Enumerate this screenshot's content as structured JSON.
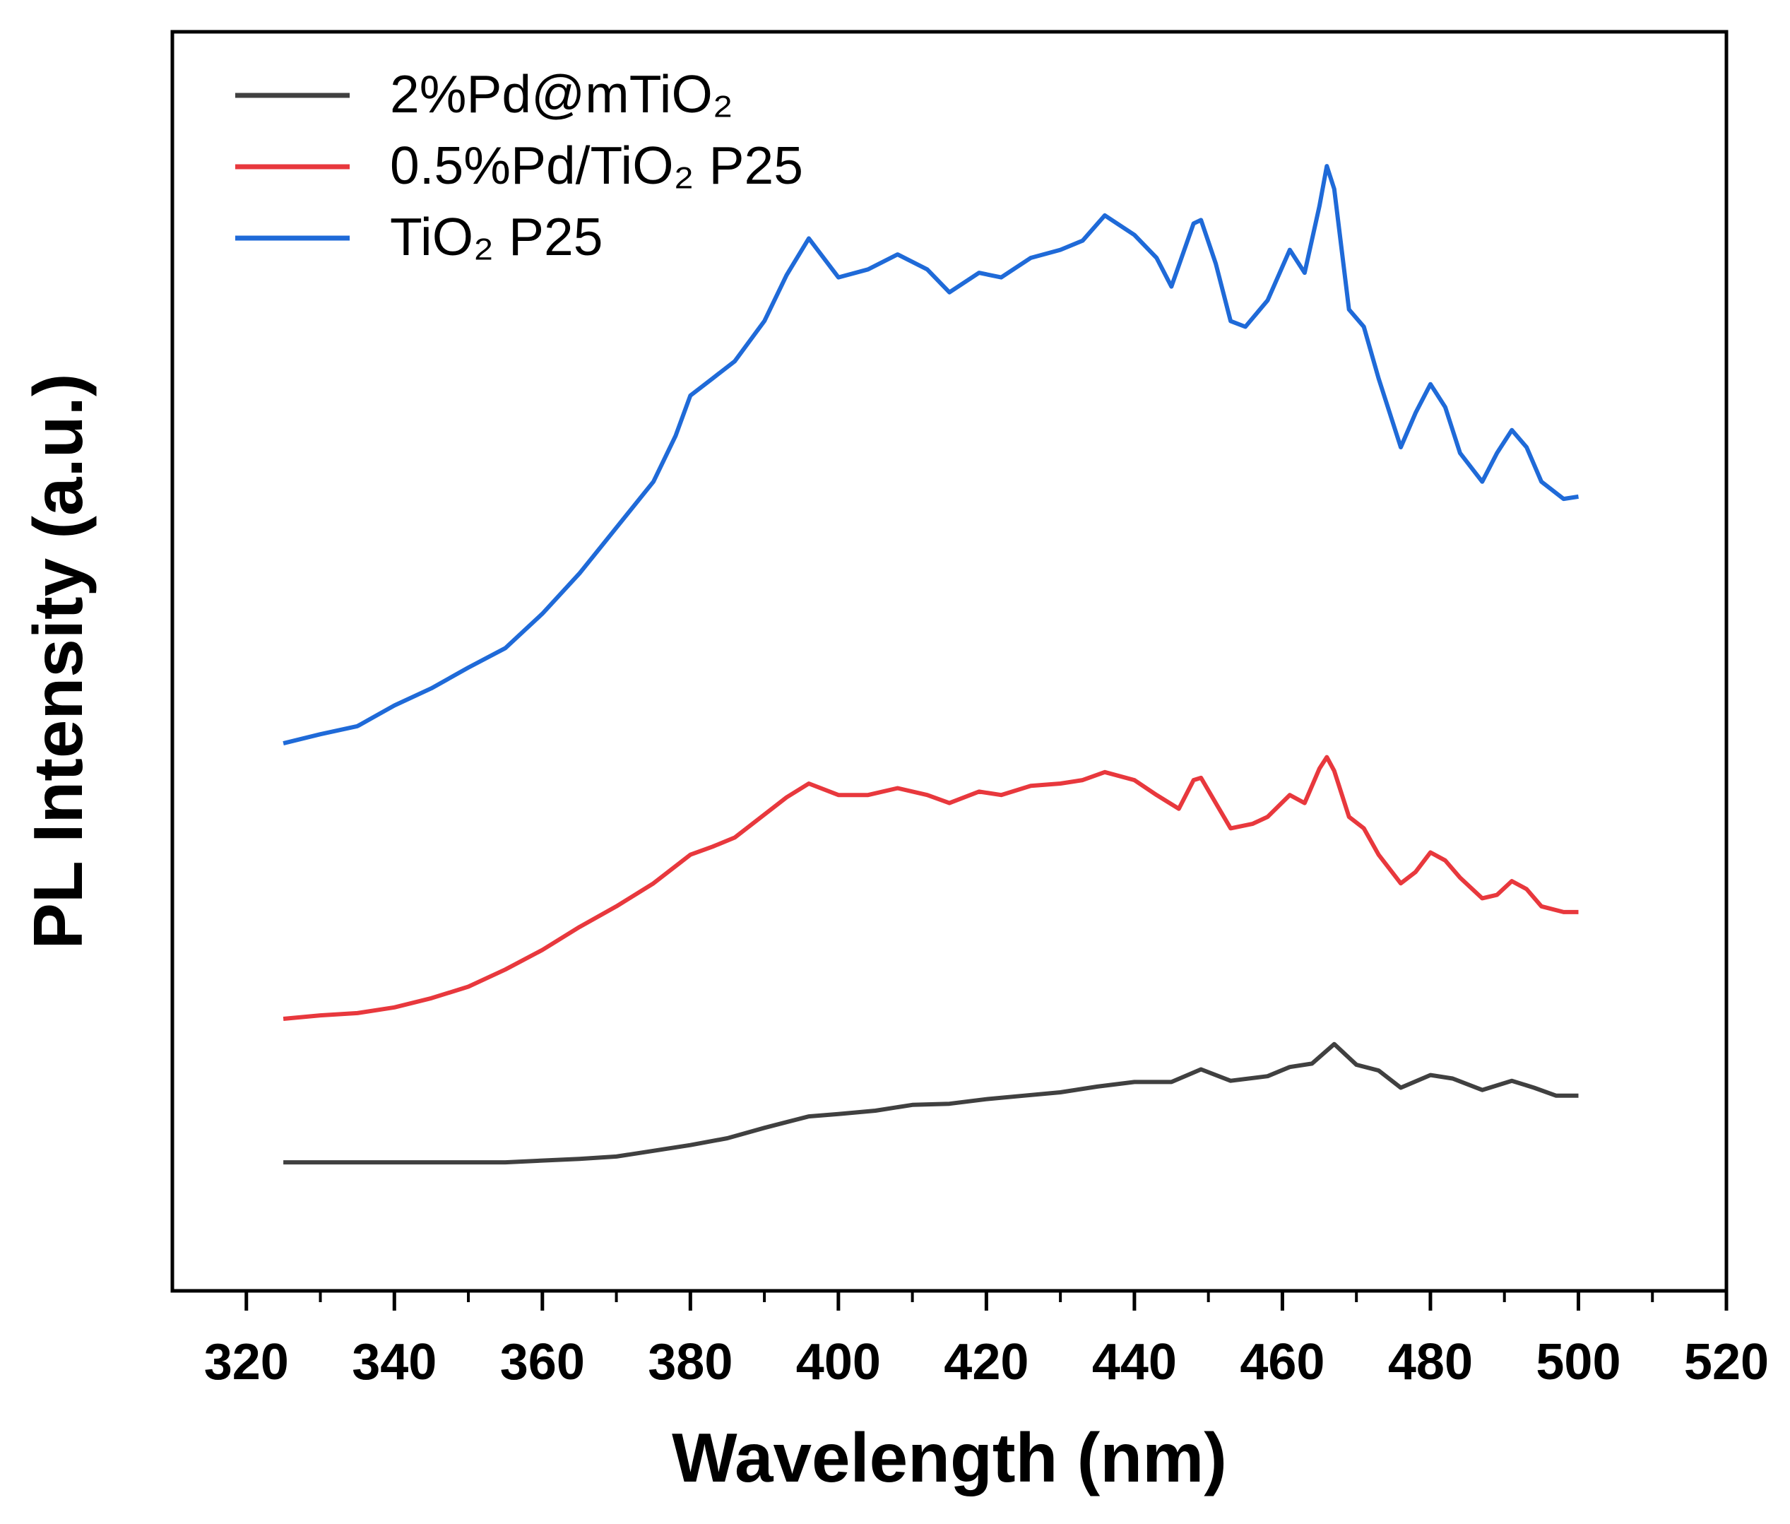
{
  "chart_data": {
    "type": "line",
    "x_label": "Wavelength (nm)",
    "y_label": "PL Intensity (a.u.)",
    "xlim": [
      310,
      520
    ],
    "xticks": [
      320,
      340,
      360,
      380,
      400,
      420,
      440,
      460,
      480,
      500,
      520
    ],
    "ylim": [
      0,
      1097
    ],
    "series": [
      {
        "name": "2%Pd@mTiO₂",
        "color": "#404040",
        "x": [
          325,
          340,
          355,
          365,
          370,
          375,
          380,
          385,
          390,
          393,
          396,
          400,
          405,
          410,
          415,
          420,
          425,
          430,
          435,
          440,
          445,
          449,
          453,
          458,
          461,
          464,
          467,
          470,
          473,
          476,
          480,
          483,
          487,
          491,
          494,
          497,
          500
        ],
        "values": [
          112,
          112,
          112,
          115,
          117,
          122,
          127,
          133,
          142,
          147,
          152,
          154,
          157,
          162,
          163,
          167,
          170,
          173,
          178,
          182,
          182,
          193,
          183,
          187,
          195,
          198,
          215,
          197,
          192,
          177,
          188,
          185,
          175,
          183,
          177,
          170,
          170
        ]
      },
      {
        "name": "0.5%Pd/TiO₂ P25",
        "color": "#e8383d",
        "x": [
          325,
          330,
          335,
          340,
          345,
          350,
          355,
          360,
          365,
          370,
          375,
          380,
          383,
          386,
          390,
          393,
          396,
          400,
          404,
          408,
          412,
          415,
          419,
          422,
          426,
          430,
          433,
          436,
          440,
          443,
          446,
          448,
          449,
          451,
          453,
          456,
          458,
          461,
          463,
          465,
          466,
          467,
          469,
          471,
          473,
          476,
          478,
          480,
          482,
          484,
          487,
          489,
          491,
          493,
          495,
          498,
          500
        ],
        "values": [
          237,
          240,
          242,
          247,
          255,
          265,
          280,
          297,
          317,
          335,
          355,
          380,
          387,
          395,
          415,
          430,
          442,
          432,
          432,
          438,
          432,
          425,
          435,
          432,
          440,
          442,
          445,
          452,
          445,
          432,
          420,
          445,
          447,
          425,
          403,
          407,
          413,
          432,
          425,
          455,
          465,
          453,
          413,
          403,
          380,
          355,
          365,
          382,
          375,
          360,
          342,
          345,
          357,
          350,
          335,
          330,
          330
        ]
      },
      {
        "name": "TiO₂ P25",
        "color": "#1f6ad8",
        "x": [
          325,
          330,
          335,
          340,
          345,
          350,
          355,
          360,
          365,
          370,
          375,
          378,
          380,
          383,
          386,
          390,
          393,
          396,
          400,
          404,
          408,
          412,
          415,
          419,
          422,
          426,
          430,
          433,
          436,
          440,
          443,
          445,
          448,
          449,
          451,
          453,
          455,
          458,
          461,
          463,
          465,
          466,
          467,
          469,
          471,
          473,
          476,
          478,
          480,
          482,
          484,
          487,
          489,
          491,
          493,
          495,
          498,
          500
        ],
        "values": [
          477,
          485,
          492,
          510,
          525,
          543,
          560,
          590,
          625,
          665,
          705,
          745,
          780,
          795,
          810,
          845,
          885,
          917,
          883,
          890,
          903,
          890,
          870,
          887,
          883,
          900,
          907,
          915,
          937,
          920,
          900,
          875,
          930,
          933,
          895,
          845,
          840,
          863,
          907,
          887,
          945,
          980,
          960,
          855,
          840,
          795,
          735,
          765,
          790,
          770,
          730,
          705,
          730,
          750,
          735,
          705,
          690,
          692
        ]
      }
    ]
  }
}
